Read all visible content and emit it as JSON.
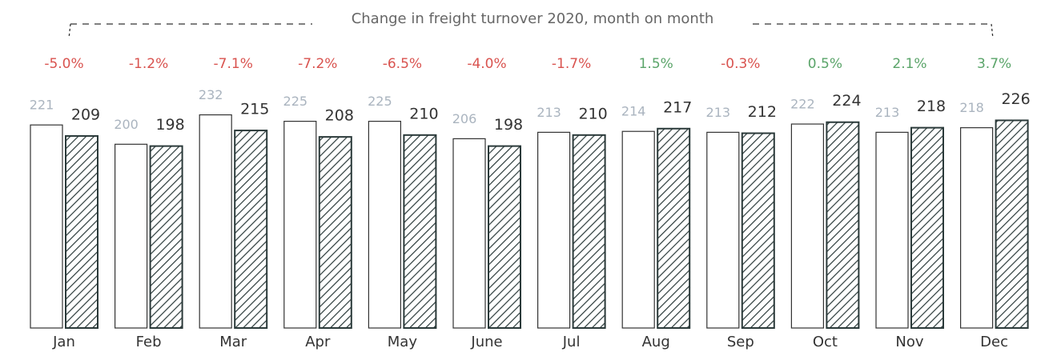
{
  "chart_data": {
    "type": "bar",
    "title": "Change in freight turnover 2020, month on month",
    "categories": [
      "Jan",
      "Feb",
      "Mar",
      "Apr",
      "May",
      "June",
      "Jul",
      "Aug",
      "Sep",
      "Oct",
      "Nov",
      "Dec"
    ],
    "series": [
      {
        "color": "#ffffff",
        "values": [
          221,
          200,
          232,
          225,
          225,
          206,
          213,
          214,
          213,
          222,
          213,
          218
        ]
      },
      {
        "color": "#2b3a3a",
        "values": [
          209,
          198,
          215,
          208,
          210,
          198,
          210,
          217,
          212,
          224,
          218,
          226
        ]
      }
    ],
    "changes": {
      "values": [
        -5.0,
        -1.2,
        -7.1,
        -7.2,
        -6.5,
        -4.0,
        -1.7,
        1.5,
        -0.3,
        0.5,
        2.1,
        3.7
      ],
      "value_labels": [
        "-5.0%",
        "-1.2%",
        "-7.1%",
        "-7.2%",
        "-6.5%",
        "-4.0%",
        "-1.7%",
        "1.5%",
        "-0.3%",
        "0.5%",
        "2.1%",
        "3.7%"
      ]
    },
    "ylim": [
      0,
      357
    ]
  }
}
